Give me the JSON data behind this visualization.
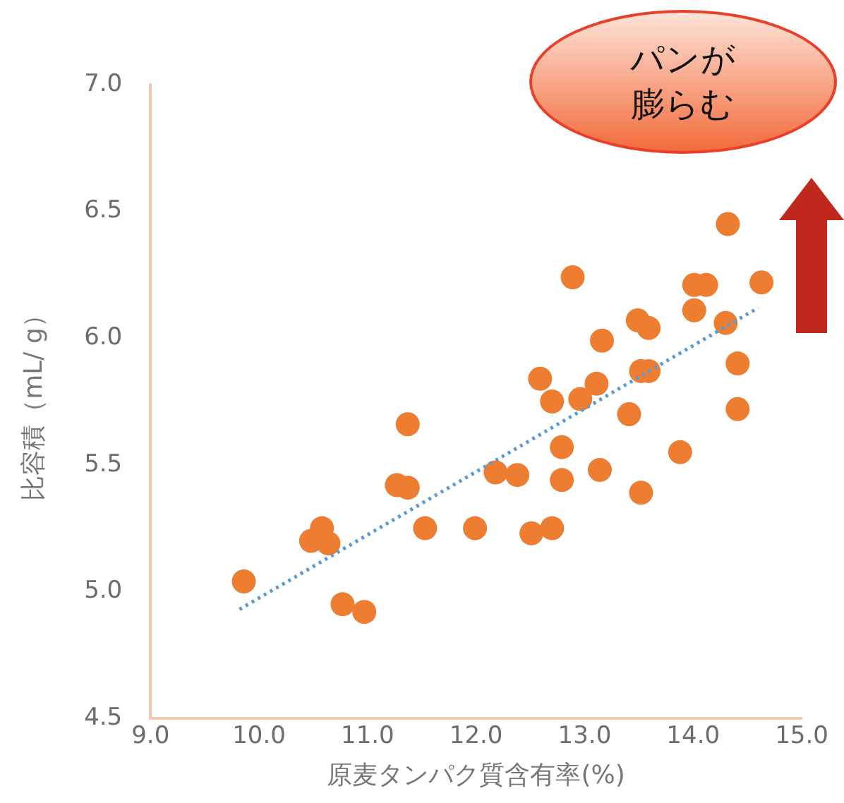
{
  "chart_data": {
    "type": "scatter",
    "xlabel": "原麦タンパク質含有率(%)",
    "ylabel": "比容積（mL/ g）",
    "annotations": [
      "パンが膨らむ"
    ],
    "xlim": [
      9.0,
      15.0
    ],
    "xticks": [
      {
        "value": 9,
        "label": "9.0"
      },
      {
        "value": 10,
        "label": "10.0"
      },
      {
        "value": 11,
        "label": "11.0"
      },
      {
        "value": 12,
        "label": "12.0"
      },
      {
        "value": 13,
        "label": "13.0"
      },
      {
        "value": 14,
        "label": "14.0"
      },
      {
        "value": 15,
        "label": "15.0"
      }
    ],
    "ylim": [
      4.5,
      7.0
    ],
    "yticks": [
      {
        "value": 4.5,
        "label": "4.5"
      },
      {
        "value": 5,
        "label": "5.0"
      },
      {
        "value": 5.5,
        "label": "5.5"
      },
      {
        "value": 6,
        "label": "6.0"
      },
      {
        "value": 6.5,
        "label": "6.5"
      },
      {
        "value": 7,
        "label": "7.0"
      }
    ],
    "grid": false,
    "legend": false,
    "marker": "circle",
    "series": [
      {
        "color": "#ed7d31",
        "x": [
          9.86,
          10.48,
          10.58,
          10.64,
          10.77,
          10.97,
          11.27,
          11.37,
          11.37,
          11.53,
          11.99,
          12.18,
          12.38,
          12.51,
          12.7,
          12.59,
          12.7,
          12.79,
          12.79,
          12.89,
          12.96,
          13.11,
          13.16,
          13.14,
          13.41,
          13.49,
          13.52,
          13.59,
          13.59,
          13.52,
          13.88,
          14.01,
          14.01,
          14.12,
          14.3,
          14.32,
          14.41,
          14.41,
          14.63
        ],
        "values": [
          5.04,
          5.2,
          5.25,
          5.19,
          4.95,
          4.92,
          5.42,
          5.41,
          5.66,
          5.25,
          5.25,
          5.47,
          5.46,
          5.23,
          5.25,
          5.84,
          5.75,
          5.57,
          5.44,
          6.24,
          5.76,
          5.82,
          5.99,
          5.48,
          5.7,
          6.07,
          5.87,
          6.04,
          5.87,
          5.39,
          5.55,
          6.11,
          6.21,
          6.21,
          6.06,
          6.45,
          5.9,
          5.72,
          6.22
        ]
      },
      {
        "type": "line",
        "color": "#5b9bd5",
        "line_style": "dotted",
        "marker": "none",
        "x": [
          9.82,
          14.6
        ],
        "values": [
          4.93,
          6.12
        ]
      }
    ]
  }
}
